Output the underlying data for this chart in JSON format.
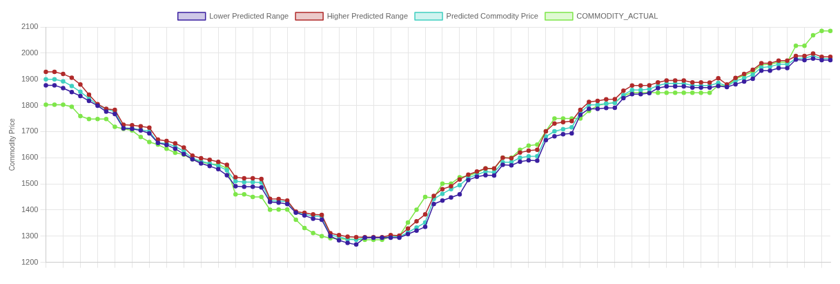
{
  "chart_data": {
    "type": "line",
    "ylabel": "Commodity Price",
    "ylim": [
      1200,
      2100
    ],
    "yticks": [
      1200,
      1300,
      1400,
      1500,
      1600,
      1700,
      1800,
      1900,
      2000,
      2100
    ],
    "grid": true,
    "legend": "top",
    "marker": "circle",
    "line_style": "solid",
    "categories": [
      null,
      null,
      null,
      null,
      null,
      null,
      null,
      null,
      null,
      null,
      null,
      null,
      null,
      null,
      null,
      null,
      null,
      null,
      null,
      null,
      null,
      null,
      null,
      null,
      null,
      null,
      null,
      null,
      null,
      null,
      null,
      null,
      null,
      null,
      null,
      null,
      null,
      null,
      null,
      null,
      null,
      null,
      null,
      null,
      null,
      null,
      null,
      null,
      null,
      null,
      null,
      null,
      null,
      null,
      null,
      null,
      null,
      null,
      null,
      null,
      null,
      null,
      null,
      null,
      null,
      null,
      null,
      null,
      null,
      null,
      null,
      null,
      null,
      null,
      null,
      null,
      null,
      null,
      null,
      null,
      null,
      null,
      null,
      null,
      null,
      null,
      null,
      null,
      null,
      null,
      null,
      null
    ],
    "series": [
      {
        "name": "Lower Predicted Range",
        "color": "#3a1fa0",
        "values": [
          1877,
          1877,
          1866,
          1851,
          1836,
          1817,
          1799,
          1776,
          1767,
          1712,
          1710,
          1704,
          1693,
          1657,
          1649,
          1634,
          1614,
          1594,
          1578,
          1568,
          1556,
          1533,
          1491,
          1489,
          1489,
          1486,
          1431,
          1428,
          1423,
          1390,
          1379,
          1367,
          1363,
          1300,
          1284,
          1274,
          1268,
          1294,
          1294,
          1294,
          1294,
          1294,
          1308,
          1321,
          1336,
          1423,
          1436,
          1448,
          1460,
          1515,
          1527,
          1533,
          1532,
          1573,
          1571,
          1585,
          1590,
          1589,
          1667,
          1682,
          1690,
          1693,
          1764,
          1787,
          1787,
          1790,
          1791,
          1828,
          1843,
          1843,
          1847,
          1866,
          1873,
          1873,
          1873,
          1868,
          1868,
          1868,
          1874,
          1870,
          1881,
          1891,
          1902,
          1933,
          1933,
          1943,
          1943,
          1975,
          1973,
          1979,
          1973,
          1973
        ]
      },
      {
        "name": "Higher Predicted Range",
        "color": "#b02a2a",
        "values": [
          1928,
          1928,
          1920,
          1906,
          1880,
          1841,
          1805,
          1787,
          1783,
          1726,
          1724,
          1720,
          1715,
          1669,
          1664,
          1655,
          1639,
          1608,
          1598,
          1592,
          1584,
          1573,
          1525,
          1521,
          1521,
          1519,
          1443,
          1442,
          1436,
          1394,
          1389,
          1383,
          1381,
          1311,
          1304,
          1298,
          1296,
          1296,
          1296,
          1296,
          1304,
          1302,
          1329,
          1357,
          1383,
          1454,
          1480,
          1491,
          1517,
          1535,
          1547,
          1559,
          1559,
          1600,
          1598,
          1620,
          1627,
          1630,
          1701,
          1731,
          1736,
          1740,
          1783,
          1813,
          1817,
          1823,
          1824,
          1856,
          1876,
          1876,
          1877,
          1888,
          1895,
          1895,
          1895,
          1888,
          1888,
          1887,
          1904,
          1880,
          1905,
          1920,
          1936,
          1961,
          1961,
          1971,
          1971,
          1989,
          1989,
          1998,
          1986,
          1986
        ]
      },
      {
        "name": "Predicted Commodity Price",
        "color": "#3fcfc0",
        "values": [
          1900,
          1900,
          1892,
          1874,
          1852,
          1827,
          1802,
          1786,
          1776,
          1714,
          1712,
          1707,
          1701,
          1657,
          1655,
          1643,
          1625,
          1598,
          1586,
          1578,
          1568,
          1552,
          1510,
          1507,
          1507,
          1505,
          1436,
          1434,
          1432,
          1391,
          1383,
          1377,
          1375,
          1304,
          1298,
          1288,
          1286,
          1294,
          1294,
          1294,
          1298,
          1298,
          1314,
          1333,
          1352,
          1442,
          1462,
          1480,
          1495,
          1523,
          1535,
          1547,
          1544,
          1583,
          1583,
          1600,
          1605,
          1606,
          1681,
          1701,
          1709,
          1716,
          1773,
          1802,
          1803,
          1807,
          1810,
          1840,
          1859,
          1859,
          1862,
          1876,
          1884,
          1884,
          1884,
          1876,
          1876,
          1876,
          1886,
          1874,
          1893,
          1904,
          1917,
          1945,
          1948,
          1957,
          1957,
          1979,
          1981,
          1989,
          1979,
          1979
        ]
      },
      {
        "name": "COMMODITY_ACTUAL",
        "color": "#7ee64a",
        "values": [
          1803,
          1803,
          1803,
          1795,
          1759,
          1748,
          1748,
          1748,
          1718,
          1710,
          1704,
          1679,
          1660,
          1650,
          1634,
          1619,
          1612,
          1594,
          1584,
          1576,
          1574,
          1560,
          1460,
          1460,
          1450,
          1450,
          1401,
          1402,
          1402,
          1363,
          1331,
          1312,
          1300,
          1292,
          1290,
          1288,
          1288,
          1286,
          1286,
          1286,
          1298,
          1300,
          1352,
          1401,
          1450,
          1446,
          1501,
          1501,
          1525,
          1530,
          1543,
          1559,
          1557,
          1600,
          1600,
          1630,
          1646,
          1650,
          1701,
          1750,
          1750,
          1750,
          1750,
          1779,
          1800,
          1807,
          1810,
          1837,
          1849,
          1849,
          1849,
          1848,
          1848,
          1848,
          1848,
          1848,
          1848,
          1848,
          1876,
          1874,
          1901,
          1915,
          1929,
          1955,
          1957,
          1965,
          1965,
          2028,
          2028,
          2068,
          2085,
          2085
        ]
      }
    ]
  }
}
